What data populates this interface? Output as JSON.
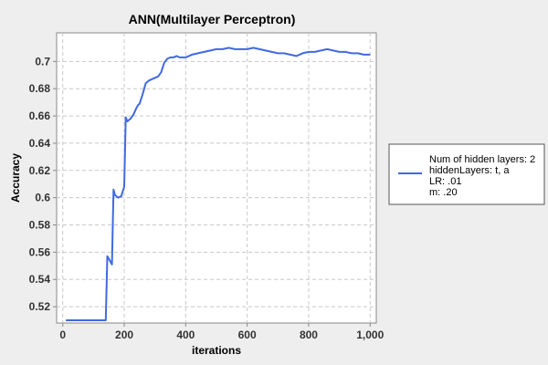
{
  "chart_data": {
    "type": "line",
    "title": "ANN(Multilayer Perceptron)",
    "xlabel": "iterations",
    "ylabel": "Accuracy",
    "xlim": [
      -20,
      1020
    ],
    "ylim": [
      0.508,
      0.721
    ],
    "x_ticks": [
      0,
      200,
      400,
      600,
      800,
      1000
    ],
    "x_tick_labels": [
      "0",
      "200",
      "400",
      "600",
      "800",
      "1,000"
    ],
    "y_ticks": [
      0.52,
      0.54,
      0.56,
      0.58,
      0.6,
      0.62,
      0.64,
      0.66,
      0.68,
      0.7
    ],
    "y_tick_labels": [
      "0.52",
      "0.54",
      "0.56",
      "0.58",
      "0.6",
      "0.62",
      "0.64",
      "0.66",
      "0.68",
      "0.7"
    ],
    "grid": true,
    "legend_position": "right",
    "legend_lines": [
      "Num of hidden layers: 2",
      "hiddenLayers: t, a",
      "LR: .01",
      "m: .20"
    ],
    "series": [
      {
        "color": "#4169e1",
        "x": [
          10,
          50,
          100,
          140,
          145,
          150,
          160,
          165,
          170,
          180,
          190,
          200,
          205,
          210,
          220,
          230,
          240,
          245,
          250,
          260,
          270,
          280,
          290,
          300,
          310,
          320,
          330,
          340,
          350,
          360,
          370,
          380,
          390,
          400,
          410,
          420,
          440,
          460,
          480,
          500,
          520,
          540,
          560,
          580,
          600,
          620,
          640,
          660,
          680,
          700,
          720,
          740,
          760,
          780,
          800,
          820,
          840,
          860,
          880,
          900,
          920,
          940,
          960,
          980,
          1000
        ],
        "y": [
          0.51,
          0.51,
          0.51,
          0.51,
          0.557,
          0.555,
          0.551,
          0.606,
          0.602,
          0.6,
          0.601,
          0.608,
          0.659,
          0.656,
          0.658,
          0.661,
          0.666,
          0.668,
          0.669,
          0.676,
          0.684,
          0.686,
          0.687,
          0.688,
          0.689,
          0.692,
          0.699,
          0.702,
          0.703,
          0.703,
          0.704,
          0.703,
          0.703,
          0.703,
          0.704,
          0.705,
          0.706,
          0.707,
          0.708,
          0.709,
          0.709,
          0.71,
          0.709,
          0.709,
          0.709,
          0.71,
          0.709,
          0.708,
          0.707,
          0.706,
          0.706,
          0.705,
          0.704,
          0.706,
          0.707,
          0.707,
          0.708,
          0.709,
          0.708,
          0.707,
          0.707,
          0.706,
          0.706,
          0.705,
          0.705
        ]
      }
    ]
  }
}
